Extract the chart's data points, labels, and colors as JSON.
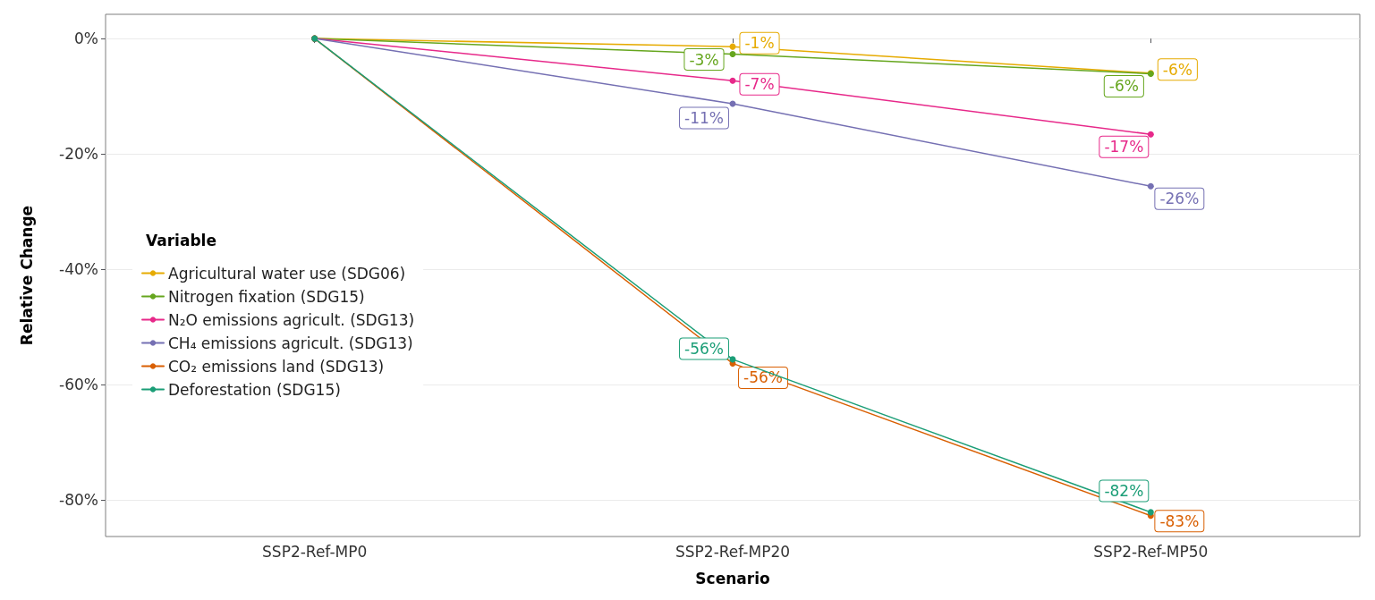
{
  "chart_data": {
    "type": "line",
    "xlabel": "Scenario",
    "ylabel": "Relative Change",
    "legend_title": "Variable",
    "categories": [
      "SSP2-Ref-MP0",
      "SSP2-Ref-MP20",
      "SSP2-Ref-MP50"
    ],
    "series": [
      {
        "name": "Agricultural water use (SDG06)",
        "color": "#e6ab02",
        "values": [
          0,
          -1.4,
          -6.0
        ],
        "value_labels": [
          null,
          "-1%",
          "-6%"
        ]
      },
      {
        "name": "Nitrogen fixation (SDG15)",
        "color": "#66a61e",
        "values": [
          0,
          -2.7,
          -6.1
        ],
        "value_labels": [
          null,
          "-3%",
          "-6%"
        ]
      },
      {
        "name": "N₂O emissions agricult. (SDG13)",
        "color": "#e7298a",
        "values": [
          0,
          -7.3,
          -16.6
        ],
        "value_labels": [
          null,
          "-7%",
          "-17%"
        ]
      },
      {
        "name": "CH₄ emissions agricult. (SDG13)",
        "color": "#7570b3",
        "values": [
          0,
          -11.3,
          -25.6
        ],
        "value_labels": [
          null,
          "-11%",
          "-26%"
        ]
      },
      {
        "name": "CO₂ emissions land (SDG13)",
        "color": "#d95f02",
        "values": [
          0,
          -56.3,
          -82.7
        ],
        "value_labels": [
          null,
          "-56%",
          "-83%"
        ]
      },
      {
        "name": "Deforestation (SDG15)",
        "color": "#1b9e77",
        "values": [
          0,
          -55.6,
          -82.1
        ],
        "value_labels": [
          null,
          "-56%",
          "-82%"
        ]
      }
    ],
    "ylim": [
      -86.3,
      4.2
    ],
    "yticks": [
      {
        "value": 0,
        "label": "0%"
      },
      {
        "value": -20,
        "label": "-20%"
      },
      {
        "value": -40,
        "label": "-40%"
      },
      {
        "value": -60,
        "label": "-60%"
      },
      {
        "value": -80,
        "label": "-80%"
      }
    ],
    "grid": "y",
    "legend": "left",
    "marker": "circle",
    "line_style": "solid"
  }
}
